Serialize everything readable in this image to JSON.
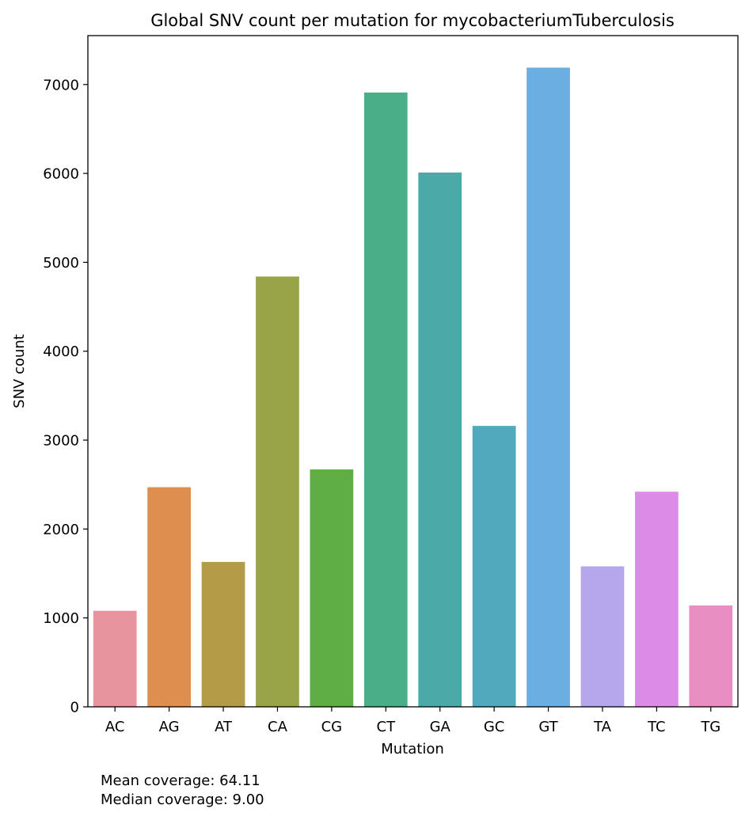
{
  "chart_data": {
    "type": "bar",
    "title": "Global SNV count per mutation for mycobacteriumTuberculosis",
    "xlabel": "Mutation",
    "ylabel": "SNV count",
    "ylim": [
      0,
      7550
    ],
    "yticks": [
      0,
      1000,
      2000,
      3000,
      4000,
      5000,
      6000,
      7000
    ],
    "categories": [
      "AC",
      "AG",
      "AT",
      "CA",
      "CG",
      "CT",
      "GA",
      "GC",
      "GT",
      "TA",
      "TC",
      "TG"
    ],
    "values": [
      1080,
      2470,
      1630,
      4840,
      2670,
      6910,
      6010,
      3160,
      7190,
      1580,
      2420,
      1140
    ],
    "colors": [
      "#e8949f",
      "#de8f4f",
      "#b49b47",
      "#98a447",
      "#5fae45",
      "#4aaf88",
      "#4baaa7",
      "#50a9bd",
      "#6aaee2",
      "#b6a7ea",
      "#dd8ce5",
      "#e88ec2"
    ],
    "grid": false
  },
  "footnotes": {
    "mean": "Mean coverage: 64.11",
    "median": "Median coverage: 9.00"
  }
}
